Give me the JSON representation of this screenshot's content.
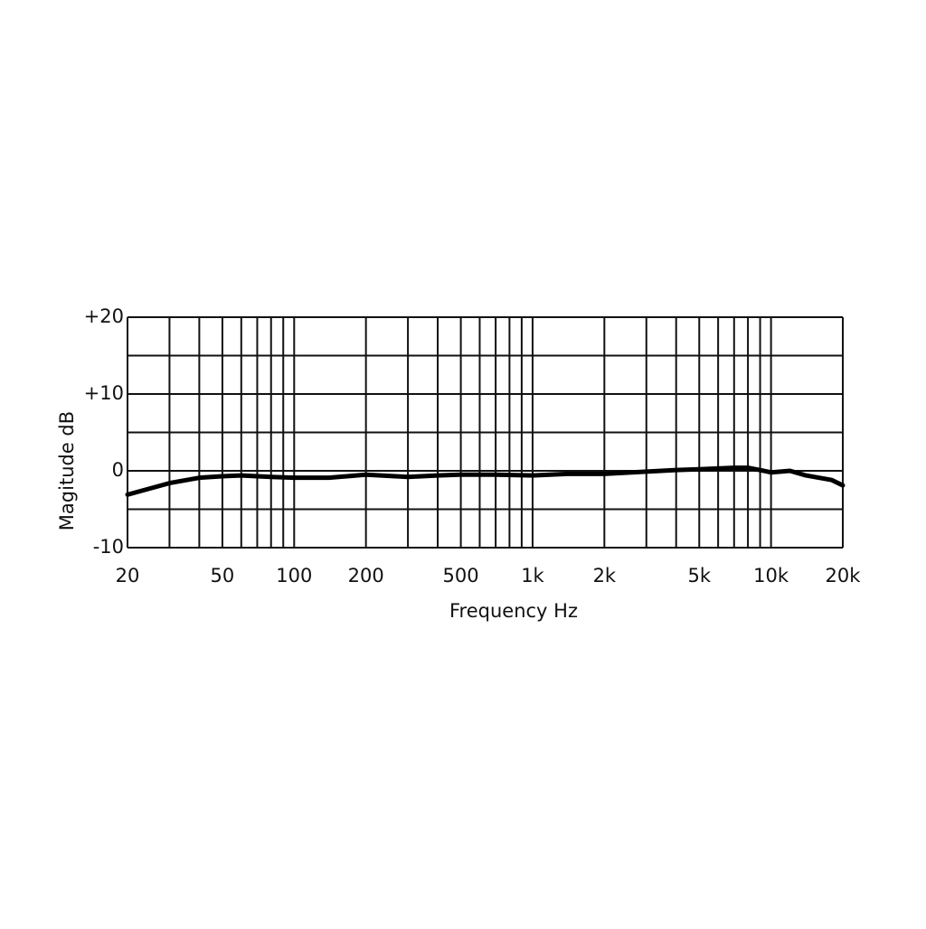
{
  "chart_data": {
    "type": "line",
    "xlabel": "Frequency Hz",
    "ylabel": "Magitude dB",
    "xscale": "log",
    "xlim": [
      20,
      20000
    ],
    "ylim": [
      -10,
      20
    ],
    "xticks": [
      20,
      50,
      100,
      200,
      500,
      {
        "value": 1000,
        "label": "1k"
      },
      {
        "value": 2000,
        "label": "2k"
      },
      {
        "value": 5000,
        "label": "5k"
      },
      {
        "value": 10000,
        "label": "10k"
      },
      {
        "value": 20000,
        "label": "20k"
      }
    ],
    "xgrid_minor": [
      30,
      40,
      60,
      70,
      80,
      90,
      300,
      400,
      600,
      700,
      800,
      900,
      3000,
      4000,
      6000,
      7000,
      8000,
      9000
    ],
    "yticks": [
      {
        "value": 20,
        "label": "+20"
      },
      {
        "value": 10,
        "label": "+10"
      },
      0,
      -10
    ],
    "ygrid_minor": [
      15,
      5,
      -5
    ],
    "grid": true,
    "series": [
      {
        "color": "#000000",
        "x": [
          20,
          30,
          40,
          50,
          60,
          80,
          100,
          140,
          200,
          300,
          400,
          500,
          700,
          1000,
          1400,
          2000,
          3000,
          4000,
          5000,
          7000,
          8000,
          9000,
          10000,
          12000,
          14000,
          18000,
          20000
        ],
        "values": [
          -3.1,
          -1.6,
          -0.9,
          -0.7,
          -0.6,
          -0.8,
          -0.9,
          -0.9,
          -0.5,
          -0.8,
          -0.6,
          -0.5,
          -0.5,
          -0.6,
          -0.4,
          -0.4,
          -0.1,
          0.1,
          0.2,
          0.4,
          0.4,
          0.1,
          -0.2,
          0,
          -0.6,
          -1.2,
          -1.9
        ]
      }
    ]
  }
}
